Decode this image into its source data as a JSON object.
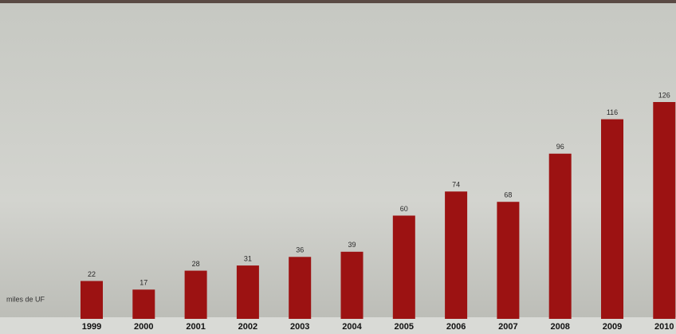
{
  "chart_data": {
    "type": "bar",
    "y_label": "miles de UF",
    "categories": [
      "1999",
      "2000",
      "2001",
      "2002",
      "2003",
      "2004",
      "2005",
      "2006",
      "2007",
      "2008",
      "2009",
      "2010"
    ],
    "values": [
      22,
      17,
      28,
      31,
      36,
      39,
      60,
      74,
      68,
      96,
      116,
      126
    ],
    "color": "#9c1212"
  }
}
